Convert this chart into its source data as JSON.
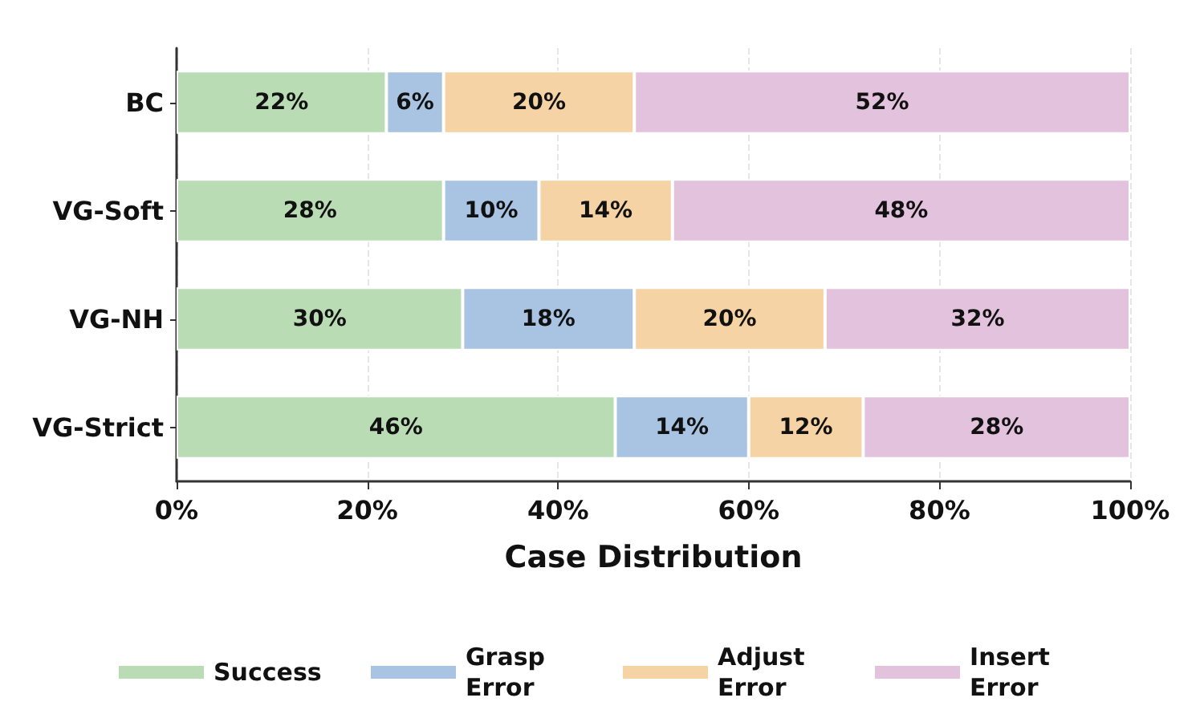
{
  "chart_data": {
    "type": "bar",
    "orientation": "horizontal",
    "stacked": true,
    "xlabel": "Case Distribution",
    "categories": [
      "BC",
      "VG-Soft",
      "VG-NH",
      "VG-Strict"
    ],
    "series": [
      {
        "name": "Success",
        "color": "#b9dcb4",
        "values": [
          22,
          28,
          30,
          46
        ],
        "value_labels": [
          "22%",
          "28%",
          "30%",
          "46%"
        ]
      },
      {
        "name": "Grasp Error",
        "color": "#a9c4e2",
        "values": [
          6,
          10,
          18,
          14
        ],
        "value_labels": [
          "6%",
          "10%",
          "18%",
          "14%"
        ]
      },
      {
        "name": "Adjust Error",
        "color": "#f5d3a4",
        "values": [
          20,
          14,
          20,
          12
        ],
        "value_labels": [
          "20%",
          "14%",
          "20%",
          "12%"
        ]
      },
      {
        "name": "Insert Error",
        "color": "#e3c2dd",
        "values": [
          52,
          48,
          32,
          28
        ],
        "value_labels": [
          "52%",
          "48%",
          "32%",
          "28%"
        ]
      }
    ],
    "xlim": [
      0,
      100
    ],
    "xticks": [
      {
        "value": 0,
        "label": "0%"
      },
      {
        "value": 20,
        "label": "20%"
      },
      {
        "value": 40,
        "label": "40%"
      },
      {
        "value": 60,
        "label": "60%"
      },
      {
        "value": 80,
        "label": "80%"
      },
      {
        "value": 100,
        "label": "100%"
      }
    ],
    "grid": "x",
    "legend": "bottom"
  }
}
